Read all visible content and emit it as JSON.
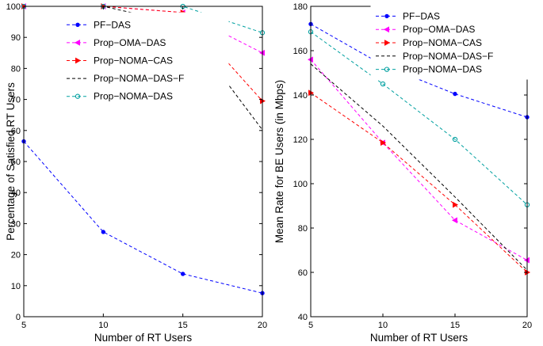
{
  "chart_data": [
    {
      "type": "line",
      "xlabel": "Number of RT Users",
      "ylabel": "Percentage of Satisfied RT Users",
      "x": [
        5,
        10,
        15,
        20
      ],
      "xlim": [
        5,
        20
      ],
      "ylim": [
        0,
        100
      ],
      "xticks": [
        "5",
        "10",
        "15",
        "20"
      ],
      "yticks": [
        "0",
        "10",
        "20",
        "30",
        "40",
        "50",
        "60",
        "70",
        "80",
        "90",
        "100"
      ],
      "grid": false,
      "legend": "top-right",
      "series": [
        {
          "name": "PF−DAS",
          "color": "#0000ff",
          "marker": "dot",
          "values": [
            56.5,
            27.3,
            13.8,
            7.6
          ]
        },
        {
          "name": "Prop−OMA−DAS",
          "color": "#ff00ff",
          "marker": "tri-left",
          "values": [
            100,
            100,
            98,
            85
          ]
        },
        {
          "name": "Prop−NOMA−CAS",
          "color": "#ff0000",
          "marker": "tri-right",
          "values": [
            100,
            100,
            98,
            69.5
          ]
        },
        {
          "name": "Prop−NOMA−DAS−F",
          "color": "#000000",
          "marker": "none",
          "values": [
            100,
            100,
            94.3,
            60.2
          ]
        },
        {
          "name": "Prop−NOMA−DAS",
          "color": "#00a0a0",
          "marker": "circle",
          "values": [
            100,
            100,
            100,
            91.5
          ]
        }
      ]
    },
    {
      "type": "line",
      "xlabel": "Number of RT Users",
      "ylabel": "Mean Rate for BE Users (in Mbps)",
      "x": [
        5,
        10,
        15,
        20
      ],
      "xlim": [
        5,
        20
      ],
      "ylim": [
        40,
        180
      ],
      "xticks": [
        "5",
        "10",
        "15",
        "20"
      ],
      "yticks": [
        "40",
        "60",
        "80",
        "100",
        "120",
        "140",
        "160",
        "180"
      ],
      "grid": false,
      "legend": "top-right",
      "series": [
        {
          "name": "PF−DAS",
          "color": "#0000ff",
          "marker": "dot",
          "values": [
            172,
            153.5,
            140.5,
            130
          ]
        },
        {
          "name": "Prop−OMA−DAS",
          "color": "#ff00ff",
          "marker": "tri-left",
          "values": [
            156,
            118.5,
            83.5,
            65.5
          ]
        },
        {
          "name": "Prop−NOMA−CAS",
          "color": "#ff0000",
          "marker": "tri-right",
          "values": [
            141,
            118.5,
            90.5,
            60
          ]
        },
        {
          "name": "Prop−NOMA−DAS−F",
          "color": "#000000",
          "marker": "none",
          "values": [
            154,
            126,
            94,
            61
          ]
        },
        {
          "name": "Prop−NOMA−DAS",
          "color": "#00a0a0",
          "marker": "circle",
          "values": [
            168.5,
            145,
            120,
            90.5
          ]
        }
      ]
    }
  ]
}
